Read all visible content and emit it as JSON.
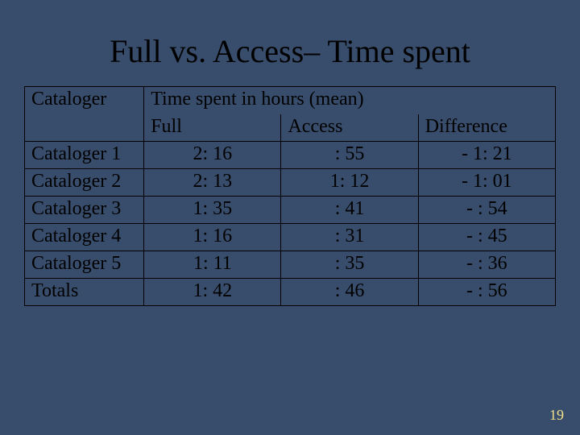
{
  "background_color": "#384d6c",
  "text_color": "#000000",
  "border_color": "#000000",
  "page_number_color": "#f3e08a",
  "font_family": "Times New Roman",
  "title": "Full vs. Access– Time spent",
  "title_fontsize": 40,
  "page_number": "19",
  "table": {
    "type": "table",
    "row_header_label": "Cataloger",
    "spanning_header": "Time spent in hours (mean)",
    "columns": [
      "Full",
      "Access",
      "Difference"
    ],
    "column_align": [
      "center",
      "center",
      "center"
    ],
    "row_label_align": "left",
    "cell_fontsize": 24,
    "rows": [
      {
        "label": "Cataloger 1",
        "full": "2: 16",
        "access": ": 55",
        "diff": "- 1: 21"
      },
      {
        "label": "Cataloger 2",
        "full": "2: 13",
        "access": "1: 12",
        "diff": "- 1: 01"
      },
      {
        "label": "Cataloger 3",
        "full": "1: 35",
        "access": ": 41",
        "diff": "- : 54"
      },
      {
        "label": "Cataloger 4",
        "full": "1: 16",
        "access": ": 31",
        "diff": "- : 45"
      },
      {
        "label": "Cataloger 5",
        "full": "1: 11",
        "access": ": 35",
        "diff": "- : 36"
      }
    ],
    "totals": {
      "label": "Totals",
      "full": "1: 42",
      "access": ": 46",
      "diff": "- : 56"
    }
  }
}
